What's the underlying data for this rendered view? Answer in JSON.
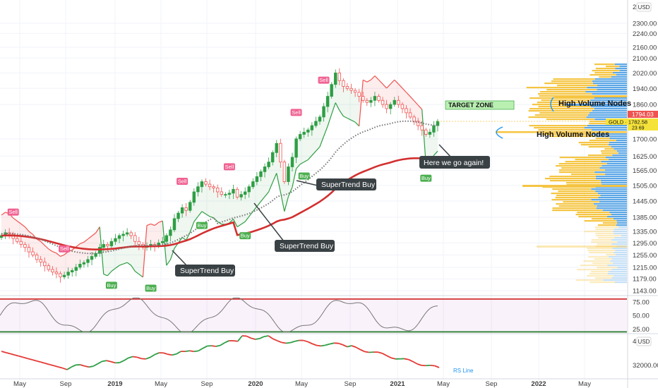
{
  "chart_data": [
    {
      "type": "candlestick",
      "symbol": "GOLD",
      "currency_badge": "USD",
      "price_axis": {
        "top_partial": "24",
        "ticks": [
          "2300.00",
          "2240.00",
          "2160.00",
          "2100.00",
          "2020.00",
          "1940.00",
          "1860.00",
          "1700.00",
          "1625.00",
          "1565.00",
          "1505.00",
          "1445.00",
          "1385.00",
          "1335.00",
          "1295.00",
          "1255.00",
          "1215.00",
          "1179.00",
          "1143.00"
        ],
        "ylim": [
          1143,
          2420
        ],
        "scale": "log"
      },
      "price_badges": {
        "high": "1794.03",
        "gold_label": "GOLD",
        "last": "1782.58",
        "sub": "23 69"
      },
      "x_axis": {
        "ticks": [
          "May",
          "Sep",
          "2019",
          "May",
          "Sep",
          "2020",
          "May",
          "Sep",
          "2021",
          "May",
          "Sep",
          "2022",
          "May"
        ]
      },
      "ohlc_weekly_close_approx": [
        1320,
        1330,
        1325,
        1310,
        1300,
        1290,
        1280,
        1265,
        1255,
        1240,
        1232,
        1220,
        1208,
        1200,
        1195,
        1185,
        1190,
        1200,
        1205,
        1215,
        1225,
        1230,
        1240,
        1250,
        1260,
        1280,
        1290,
        1285,
        1300,
        1310,
        1320,
        1325,
        1330,
        1320,
        1300,
        1290,
        1280,
        1285,
        1290,
        1285,
        1295,
        1300,
        1320,
        1340,
        1380,
        1400,
        1420,
        1410,
        1440,
        1480,
        1500,
        1520,
        1510,
        1500,
        1495,
        1480,
        1470,
        1470,
        1475,
        1490,
        1460,
        1470,
        1480,
        1500,
        1520,
        1540,
        1560,
        1580,
        1600,
        1640,
        1680,
        1600,
        1520,
        1580,
        1620,
        1700,
        1720,
        1730,
        1740,
        1760,
        1780,
        1800,
        1850,
        1900,
        1960,
        2020,
        1980,
        1950,
        1940,
        1930,
        1920,
        1900,
        1880,
        1870,
        1880,
        1900,
        1880,
        1860,
        1840,
        1860,
        1880,
        1860,
        1840,
        1820,
        1800,
        1780,
        1760,
        1740,
        1720,
        1730,
        1760,
        1780
      ],
      "indicators": [
        "SuperTrend",
        "EMA (red)",
        "SMA (dotted)"
      ],
      "signals": [
        {
          "label": "Sell"
        },
        {
          "label": "Sell"
        },
        {
          "label": "Buy"
        },
        {
          "label": "Buy"
        },
        {
          "label": "Sell"
        },
        {
          "label": "Buy"
        },
        {
          "label": "Sell"
        },
        {
          "label": "Buy"
        },
        {
          "label": "Sell"
        },
        {
          "label": "Buy"
        },
        {
          "label": "Sell"
        },
        {
          "label": "Buy"
        }
      ],
      "annotations": {
        "target_zone": "TARGET ZONE",
        "hvn_top": "High Volume Nodes",
        "hvn_bottom": "High Volume Nodes",
        "callout_1": "SuperTrend Buy",
        "callout_2": "SuperTrend Buy",
        "callout_3": "SuperTrend Buy",
        "callout_4": "Here we go again!"
      }
    },
    {
      "type": "line",
      "name": "oscillator",
      "ticks": [
        "75.00",
        "50.00",
        "25.00"
      ],
      "ylim": [
        18,
        85
      ],
      "upper_band": 80,
      "lower_band": 20
    },
    {
      "type": "line",
      "name": "relative strength",
      "label": "RS Line",
      "currency_badge": "USD",
      "ticks": [
        "40",
        "32000.00"
      ]
    }
  ],
  "colors": {
    "up": "#26a69a",
    "up_green": "#2e9e44",
    "down": "#ef5350",
    "ema": "#d32f2f",
    "sma": "#777777",
    "supertrend_up": "#2e9e44",
    "supertrend_down": "#ef5350",
    "volume_blue": "#5aa6e6",
    "volume_yellow": "#f5c542",
    "target_zone": "#b9f0b2",
    "callout_bg": "#3a4144",
    "gold_badge": "#f5e33b",
    "price_badge": "#ef5350"
  }
}
